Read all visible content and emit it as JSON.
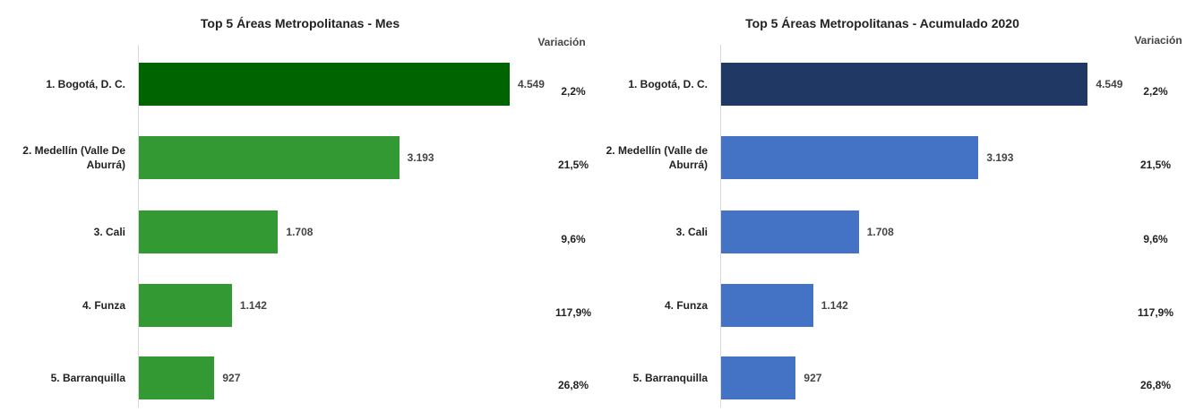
{
  "chart_data": [
    {
      "type": "bar",
      "title": "Top 5 Áreas Metropolitanas - Mes",
      "categories": [
        "1. Bogotá, D. C.",
        "2. Medellín (Valle De Aburrá)",
        "3. Cali",
        "4. Funza",
        "5. Barranquilla"
      ],
      "values": [
        4549,
        3193,
        1708,
        1142,
        927
      ],
      "value_labels": [
        "4.549",
        "3.193",
        "1.708",
        "1.142",
        "927"
      ],
      "colors": [
        "#006400",
        "#339933",
        "#339933",
        "#339933",
        "#339933"
      ],
      "xlim": [
        0,
        5000
      ],
      "variation": {
        "label": "Variación",
        "values": [
          "2,2%",
          "21,5%",
          "9,6%",
          "117,9%",
          "26,8%"
        ]
      }
    },
    {
      "type": "bar",
      "title": "Top 5 Áreas Metropolitanas - Acumulado 2020",
      "categories": [
        "1. Bogotá, D. C.",
        "2. Medellín (Valle de Aburrá)",
        "3. Cali",
        "4. Funza",
        "5. Barranquilla"
      ],
      "values": [
        4549,
        3193,
        1708,
        1142,
        927
      ],
      "value_labels": [
        "4.549",
        "3.193",
        "1.708",
        "1.142",
        "927"
      ],
      "colors": [
        "#203864",
        "#4472c4",
        "#4472c4",
        "#4472c4",
        "#4472c4"
      ],
      "xlim": [
        0,
        5000
      ],
      "variation": {
        "label": "Variación",
        "values": [
          "2,2%",
          "21,5%",
          "9,6%",
          "117,9%",
          "26,8%"
        ]
      }
    }
  ]
}
